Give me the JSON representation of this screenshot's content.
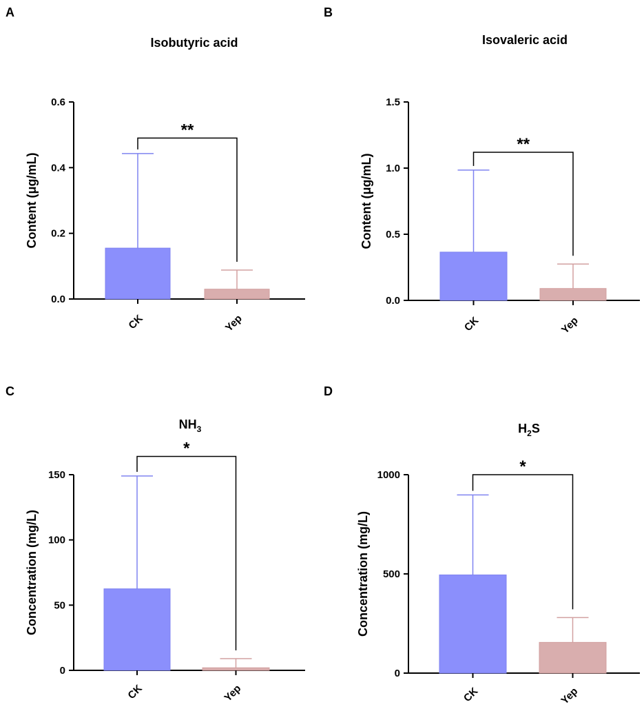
{
  "figure": {
    "colors": {
      "ck": "#8b8ffc",
      "ck_edge": "#7f83f0",
      "yep": "#d9aeae",
      "yep_edge": "#d2a0a0",
      "axis": "#000000"
    }
  },
  "chart_data": [
    {
      "panel": "A",
      "type": "bar",
      "title": "Isobutyric acid",
      "ylabel": "Content (μg/mL)",
      "xlabel": "",
      "categories": [
        "CK",
        "Yep"
      ],
      "values": [
        0.155,
        0.03
      ],
      "error_upper": [
        0.443,
        0.088
      ],
      "ylim": [
        0,
        0.6
      ],
      "yticks": [
        0,
        0.2,
        0.4,
        0.6
      ],
      "ytick_labels": [
        "0.0",
        "0.2",
        "0.4",
        "0.6"
      ],
      "significance": "**",
      "bracket_y": 0.49
    },
    {
      "panel": "B",
      "type": "bar",
      "title": "Isovaleric acid",
      "ylabel": "Content (μg/mL)",
      "xlabel": "",
      "categories": [
        "CK",
        "Yep"
      ],
      "values": [
        0.365,
        0.09
      ],
      "error_upper": [
        0.985,
        0.275
      ],
      "ylim": [
        0,
        1.5
      ],
      "yticks": [
        0,
        0.5,
        1.0,
        1.5
      ],
      "ytick_labels": [
        "0.0",
        "0.5",
        "1.0",
        "1.5"
      ],
      "significance": "**",
      "bracket_y": 1.12
    },
    {
      "panel": "C",
      "type": "bar",
      "title_main": "NH",
      "title_sub": "3",
      "title_tail": "",
      "ylabel": "Concentration (mg/L)",
      "xlabel": "",
      "categories": [
        "CK",
        "Yep"
      ],
      "values": [
        62.5,
        2.0
      ],
      "error_upper": [
        149,
        9
      ],
      "ylim": [
        0,
        150
      ],
      "yticks": [
        0,
        50,
        100,
        150
      ],
      "ytick_labels": [
        "0",
        "50",
        "100",
        "150"
      ],
      "significance": "*",
      "bracket_y": 164
    },
    {
      "panel": "D",
      "type": "bar",
      "title_main": "H",
      "title_sub": "2",
      "title_tail": "S",
      "ylabel": "Concentration (mg/L)",
      "xlabel": "",
      "categories": [
        "CK",
        "Yep"
      ],
      "values": [
        495,
        155
      ],
      "error_upper": [
        898,
        280
      ],
      "ylim": [
        0,
        1000
      ],
      "yticks": [
        0,
        500,
        1000
      ],
      "ytick_labels": [
        "0",
        "500",
        "1000"
      ],
      "significance": "*",
      "bracket_y": 1000
    }
  ]
}
